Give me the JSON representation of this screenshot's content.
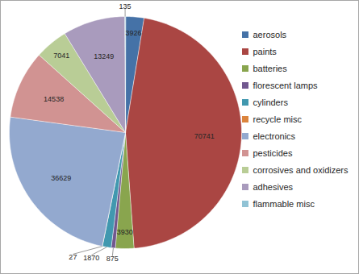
{
  "chart_data": {
    "type": "pie",
    "categories": [
      "aerosols",
      "paints",
      "batteries",
      "florescent lamps",
      "cylinders",
      "recycle misc",
      "electronics",
      "pesticides",
      "corrosives and oxidizers",
      "adhesives",
      "flammable misc"
    ],
    "values": [
      3926,
      70741,
      3930,
      875,
      1870,
      27,
      36629,
      14538,
      7041,
      13249,
      135
    ],
    "colors": [
      "#4572a7",
      "#aa4643",
      "#89a54e",
      "#71588f",
      "#4198af",
      "#db843d",
      "#93a9cf",
      "#d19392",
      "#b9cd96",
      "#a99bbd",
      "#91c3d5"
    ],
    "data_labels": true,
    "legend": "right"
  }
}
